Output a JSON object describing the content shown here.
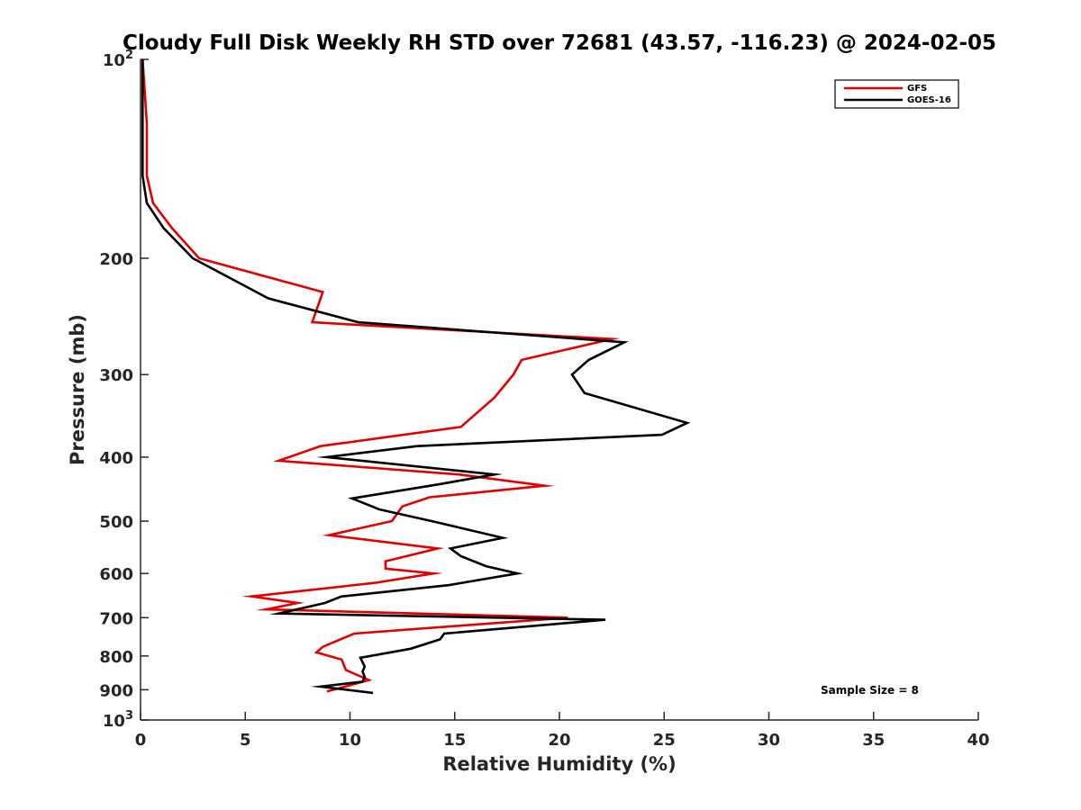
{
  "chart_data": {
    "type": "line",
    "title": "Cloudy Full Disk Weekly RH STD over 72681 (43.57, -116.23) @ 2024-02-05",
    "xlabel": "Relative Humidity (%)",
    "ylabel": "Pressure (mb)",
    "xlim": [
      0,
      40
    ],
    "ylim": [
      100,
      1000
    ],
    "y_scale": "log",
    "y_reversed": true,
    "x_ticks": [
      0,
      5,
      10,
      15,
      20,
      25,
      30,
      35,
      40
    ],
    "y_ticks": [
      {
        "value": 100,
        "base": "10",
        "exp": "2"
      },
      {
        "value": 200,
        "label": "200"
      },
      {
        "value": 300,
        "label": "300"
      },
      {
        "value": 400,
        "label": "400"
      },
      {
        "value": 500,
        "label": "500"
      },
      {
        "value": 600,
        "label": "600"
      },
      {
        "value": 700,
        "label": "700"
      },
      {
        "value": 800,
        "label": "800"
      },
      {
        "value": 900,
        "label": "900"
      },
      {
        "value": 1000,
        "base": "10",
        "exp": "3"
      }
    ],
    "grid": false,
    "legend_position": "top-right",
    "annotation": "Sample Size = 8",
    "series": [
      {
        "name": "GFS",
        "color": "#e00000",
        "points": [
          [
            0.1,
            100
          ],
          [
            0.3,
            125
          ],
          [
            0.3,
            150
          ],
          [
            0.6,
            165
          ],
          [
            1.5,
            180
          ],
          [
            2.8,
            200
          ],
          [
            8.7,
            225
          ],
          [
            8.2,
            250
          ],
          [
            22.5,
            265
          ],
          [
            18.2,
            285
          ],
          [
            17.8,
            300
          ],
          [
            16.9,
            325
          ],
          [
            15.3,
            360
          ],
          [
            8.6,
            385
          ],
          [
            6.6,
            405
          ],
          [
            15.2,
            425
          ],
          [
            19.3,
            442
          ],
          [
            13.8,
            460
          ],
          [
            12.5,
            475
          ],
          [
            12.0,
            500
          ],
          [
            9.0,
            525
          ],
          [
            14.2,
            550
          ],
          [
            11.7,
            575
          ],
          [
            11.7,
            590
          ],
          [
            14.0,
            600
          ],
          [
            11.2,
            620
          ],
          [
            5.3,
            650
          ],
          [
            7.5,
            665
          ],
          [
            6.0,
            680
          ],
          [
            20.4,
            700
          ],
          [
            10.2,
            740
          ],
          [
            8.7,
            775
          ],
          [
            8.4,
            790
          ],
          [
            9.6,
            810
          ],
          [
            9.8,
            840
          ],
          [
            10.9,
            870
          ],
          [
            9.5,
            895
          ],
          [
            8.9,
            905
          ]
        ]
      },
      {
        "name": "GOES-16",
        "color": "#000000",
        "points": [
          [
            0.1,
            100
          ],
          [
            0.1,
            125
          ],
          [
            0.1,
            150
          ],
          [
            0.3,
            165
          ],
          [
            1.1,
            180
          ],
          [
            2.5,
            200
          ],
          [
            6.1,
            230
          ],
          [
            10.4,
            250
          ],
          [
            23.1,
            268
          ],
          [
            21.4,
            285
          ],
          [
            20.6,
            300
          ],
          [
            21.2,
            320
          ],
          [
            26.1,
            355
          ],
          [
            24.9,
            370
          ],
          [
            13.2,
            385
          ],
          [
            8.9,
            400
          ],
          [
            16.9,
            425
          ],
          [
            14.2,
            440
          ],
          [
            10.1,
            462
          ],
          [
            11.4,
            480
          ],
          [
            13.9,
            500
          ],
          [
            17.3,
            530
          ],
          [
            14.8,
            550
          ],
          [
            15.3,
            565
          ],
          [
            16.5,
            585
          ],
          [
            18.0,
            600
          ],
          [
            14.7,
            625
          ],
          [
            9.6,
            650
          ],
          [
            8.8,
            665
          ],
          [
            6.6,
            690
          ],
          [
            22.2,
            705
          ],
          [
            14.5,
            740
          ],
          [
            14.3,
            755
          ],
          [
            12.9,
            780
          ],
          [
            10.5,
            805
          ],
          [
            10.7,
            830
          ],
          [
            10.6,
            845
          ],
          [
            10.7,
            860
          ],
          [
            10.6,
            875
          ],
          [
            8.6,
            890
          ],
          [
            11.1,
            910
          ]
        ]
      }
    ]
  }
}
